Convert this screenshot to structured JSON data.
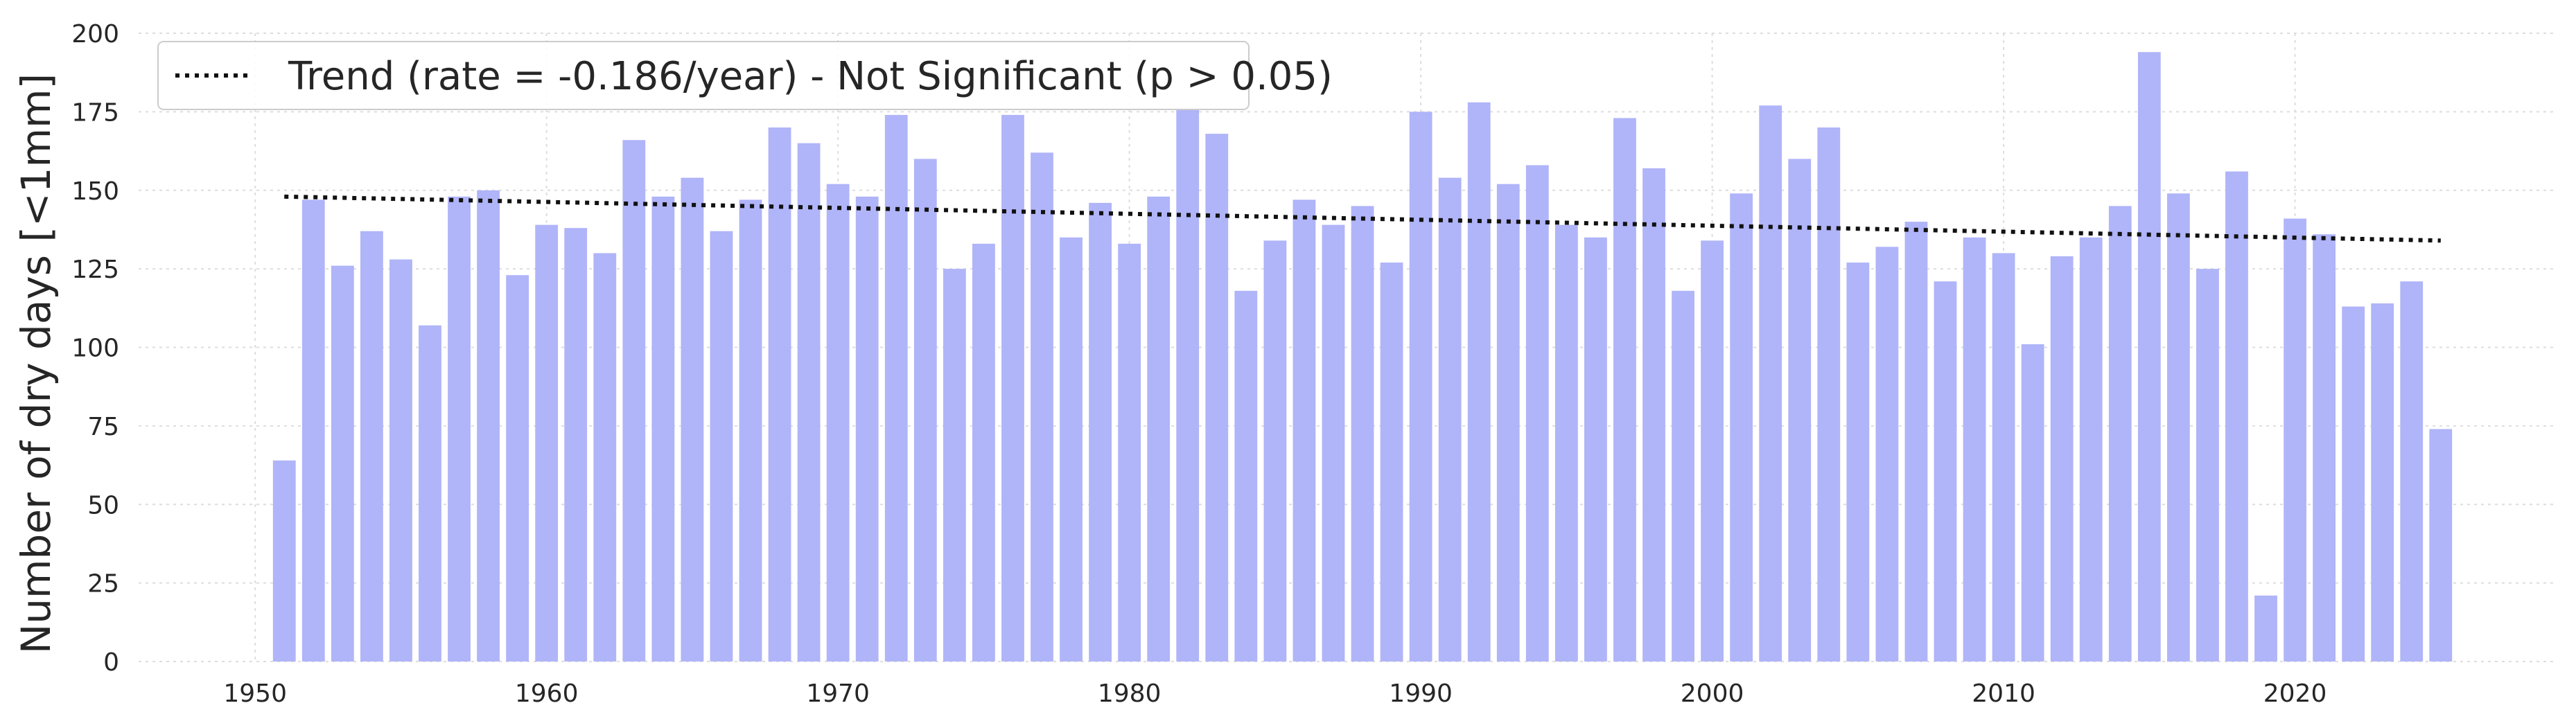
{
  "chart_data": {
    "type": "bar",
    "title": "",
    "xlabel": "",
    "ylabel": "Number of dry days [<1mm]",
    "ylim": [
      0,
      200
    ],
    "xlim": [
      1946,
      2029
    ],
    "yticks": [
      0,
      25,
      50,
      75,
      100,
      125,
      150,
      175,
      200
    ],
    "xticks": [
      1950,
      1960,
      1970,
      1980,
      1990,
      2000,
      2010,
      2020
    ],
    "grid": true,
    "legend_position": "top-left",
    "colors": {
      "bars": "#b0b4f8",
      "trend": "#111111",
      "grid": "#dddddd"
    },
    "years": [
      1951,
      1952,
      1953,
      1954,
      1955,
      1956,
      1957,
      1958,
      1959,
      1960,
      1961,
      1962,
      1963,
      1964,
      1965,
      1966,
      1967,
      1968,
      1969,
      1970,
      1971,
      1972,
      1973,
      1974,
      1975,
      1976,
      1977,
      1978,
      1979,
      1980,
      1981,
      1982,
      1983,
      1984,
      1985,
      1986,
      1987,
      1988,
      1989,
      1990,
      1991,
      1992,
      1993,
      1994,
      1995,
      1996,
      1997,
      1998,
      1999,
      2000,
      2001,
      2002,
      2003,
      2004,
      2005,
      2006,
      2007,
      2008,
      2009,
      2010,
      2011,
      2012,
      2013,
      2014,
      2015,
      2016,
      2017,
      2018,
      2019,
      2020,
      2021,
      2022,
      2023,
      2024,
      2025
    ],
    "values": [
      64,
      147,
      126,
      137,
      128,
      107,
      148,
      150,
      123,
      139,
      138,
      130,
      166,
      148,
      154,
      137,
      147,
      170,
      165,
      152,
      148,
      174,
      160,
      125,
      133,
      174,
      162,
      135,
      146,
      133,
      148,
      176,
      168,
      118,
      134,
      147,
      139,
      145,
      127,
      175,
      154,
      178,
      152,
      158,
      139,
      135,
      173,
      157,
      118,
      134,
      149,
      177,
      160,
      170,
      127,
      132,
      140,
      121,
      135,
      130,
      101,
      129,
      135,
      145,
      194,
      149,
      125,
      156,
      21,
      141,
      136,
      113,
      114,
      121,
      74
    ],
    "trend": {
      "label": "Trend (rate = -0.186/year) - Not Significant (p > 0.05)",
      "x_start": 1951,
      "y_start": 148,
      "x_end": 2025,
      "y_end": 134,
      "style": "dotted"
    }
  }
}
